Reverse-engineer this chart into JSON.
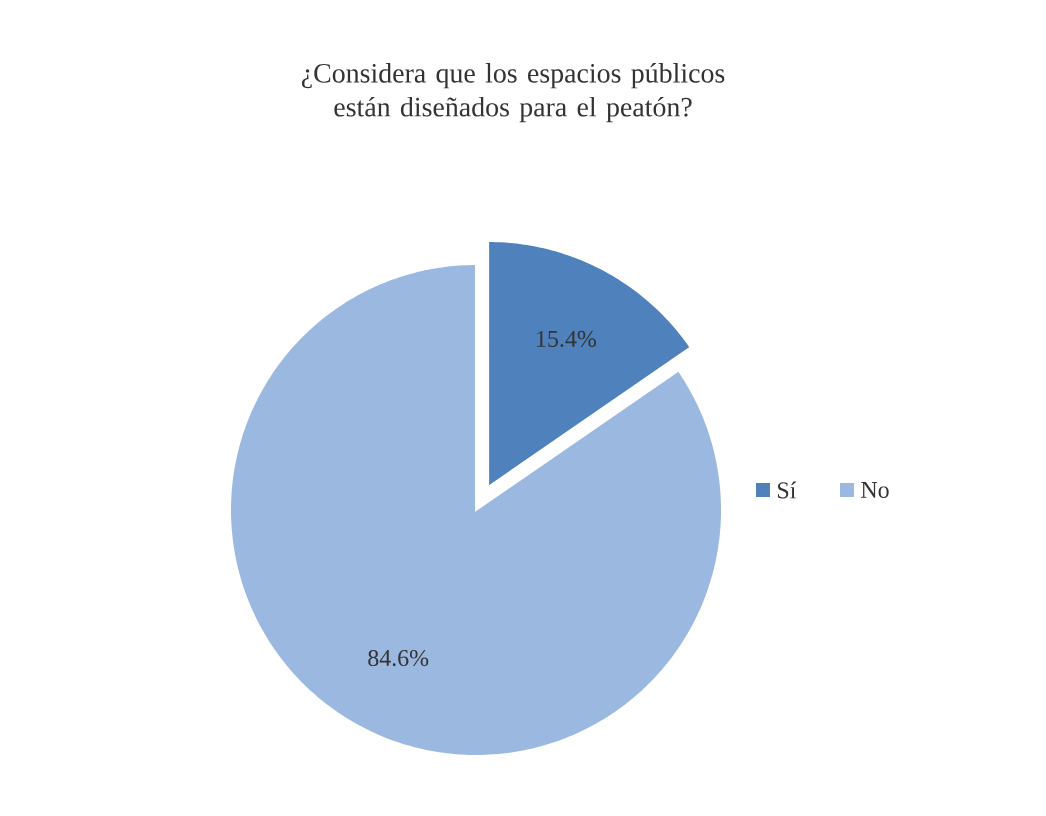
{
  "chart_data": {
    "type": "pie",
    "title": "¿Considera que los espacios públicos están diseñados para el peatón?",
    "categories": [
      "Sí",
      "No"
    ],
    "values": [
      15.4,
      84.6
    ],
    "value_labels": [
      "15.4%",
      "84.6%"
    ],
    "colors": [
      "#4f81bd",
      "#9bb9e0"
    ],
    "legend": "right"
  }
}
